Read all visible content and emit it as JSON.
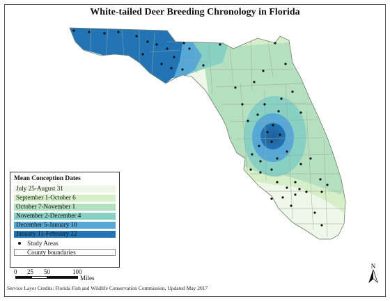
{
  "map": {
    "title": "White-tailed Deer Breeding Chronology in Florida",
    "legend": {
      "title": "Mean Conception Dates",
      "classes": [
        {
          "label": "July 25-August 31",
          "color": "#eef7e8"
        },
        {
          "label": "September 1-October 6",
          "color": "#d7efc8"
        },
        {
          "label": "October 7-November 1",
          "color": "#b5e0c0"
        },
        {
          "label": "November 2-December 4",
          "color": "#88cfc4"
        },
        {
          "label": "December 5-January 10",
          "color": "#56a8d6"
        },
        {
          "label": "January 11-February 22",
          "color": "#2374b5"
        }
      ],
      "points_label": "Study Areas",
      "boundary_label": "County boundaries"
    },
    "scale_bar": {
      "tick_labels": [
        "0",
        "25",
        "50",
        "100"
      ],
      "unit": "Miles"
    },
    "north_arrow_label": "N",
    "credit": "Service Layer Credits: Florida Fish and Wildlife Conservation Commission, Updated May 2017"
  }
}
